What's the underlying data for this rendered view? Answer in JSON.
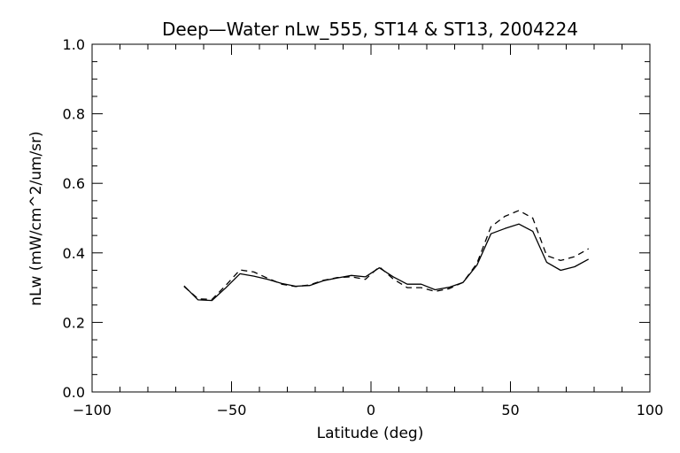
{
  "chart_data": {
    "type": "line",
    "title": "Deep—Water nLw_555, ST14 & ST13, 2004224",
    "xlabel": "Latitude (deg)",
    "ylabel": "nLw (mW/cm^2/um/sr)",
    "xlim": [
      -100,
      100
    ],
    "ylim": [
      0.0,
      1.0
    ],
    "xticks": [
      -100,
      -50,
      0,
      50,
      100
    ],
    "xtick_labels": [
      "−100",
      "−50",
      "0",
      "50",
      "100"
    ],
    "yticks": [
      0.0,
      0.2,
      0.4,
      0.6,
      0.8,
      1.0
    ],
    "ytick_labels": [
      "0.0",
      "0.2",
      "0.4",
      "0.6",
      "0.8",
      "1.0"
    ],
    "grid": false,
    "series": [
      {
        "style": "solid",
        "x": [
          -67,
          -62,
          -57,
          -52,
          -47,
          -42,
          -37,
          -32,
          -27,
          -22,
          -17,
          -12,
          -7,
          -2,
          3,
          8,
          13,
          18,
          23,
          28,
          33,
          38,
          43,
          48,
          53,
          58,
          63,
          68,
          73,
          78
        ],
        "y": [
          0.305,
          0.265,
          0.263,
          0.3,
          0.34,
          0.333,
          0.324,
          0.312,
          0.304,
          0.306,
          0.32,
          0.328,
          0.335,
          0.331,
          0.357,
          0.331,
          0.31,
          0.31,
          0.294,
          0.301,
          0.315,
          0.365,
          0.455,
          0.47,
          0.483,
          0.462,
          0.373,
          0.35,
          0.36,
          0.382
        ]
      },
      {
        "style": "dashed",
        "x": [
          -67,
          -62,
          -57,
          -52,
          -47,
          -42,
          -37,
          -32,
          -27,
          -22,
          -17,
          -12,
          -7,
          -2,
          3,
          8,
          13,
          18,
          23,
          28,
          33,
          38,
          43,
          48,
          53,
          58,
          63,
          68,
          73,
          78
        ],
        "y": [
          0.303,
          0.268,
          0.266,
          0.307,
          0.351,
          0.345,
          0.327,
          0.31,
          0.303,
          0.308,
          0.321,
          0.329,
          0.331,
          0.324,
          0.36,
          0.325,
          0.3,
          0.3,
          0.289,
          0.297,
          0.315,
          0.37,
          0.475,
          0.505,
          0.522,
          0.5,
          0.392,
          0.378,
          0.389,
          0.412
        ]
      }
    ]
  }
}
